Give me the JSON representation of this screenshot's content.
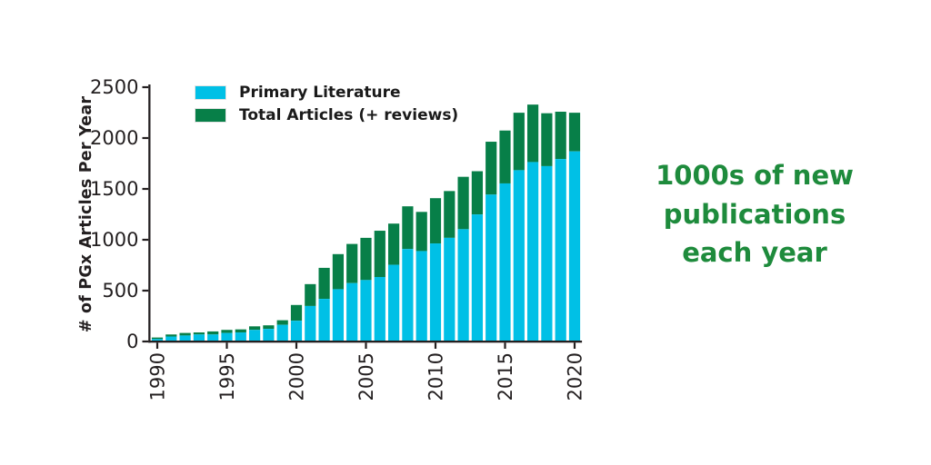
{
  "headline": {
    "text": "1000s of new publications each year",
    "color": "#1e8b3c"
  },
  "legend": {
    "items": [
      {
        "label": "Primary Literature",
        "color": "#00c0e6"
      },
      {
        "label": "Total Articles (+ reviews)",
        "color": "#077f48"
      }
    ]
  },
  "chart_data": {
    "type": "bar",
    "stacked": true,
    "title": "",
    "xlabel": "",
    "ylabel": "# of PGx Articles Per Year",
    "ylim": [
      0,
      2500
    ],
    "yticks": [
      0,
      500,
      1000,
      1500,
      2000,
      2500
    ],
    "xtick_years": [
      1990,
      1995,
      2000,
      2005,
      2010,
      2015,
      2020
    ],
    "xtick_rotation": 90,
    "grid": false,
    "legend_position": "upper left",
    "axis_color": "#231f20",
    "categories": [
      1990,
      1991,
      1992,
      1993,
      1994,
      1995,
      1996,
      1997,
      1998,
      1999,
      2000,
      2001,
      2002,
      2003,
      2004,
      2005,
      2006,
      2007,
      2008,
      2009,
      2010,
      2011,
      2012,
      2013,
      2014,
      2015,
      2016,
      2017,
      2018,
      2019,
      2020
    ],
    "series": [
      {
        "name": "Primary Literature",
        "color": "#00c0e6",
        "values": [
          15,
          40,
          50,
          60,
          60,
          75,
          80,
          105,
          115,
          155,
          195,
          340,
          410,
          505,
          565,
          595,
          625,
          745,
          900,
          880,
          955,
          1010,
          1095,
          1240,
          1435,
          1545,
          1675,
          1755,
          1715,
          1785,
          1860
        ]
      },
      {
        "name": "Total Articles (+ reviews)",
        "color": "#077f48",
        "note": "values are cumulative totals (green segment drawn from primary value up to total)",
        "values": [
          30,
          60,
          75,
          80,
          90,
          105,
          110,
          140,
          150,
          200,
          350,
          555,
          715,
          850,
          950,
          1010,
          1080,
          1150,
          1320,
          1265,
          1400,
          1470,
          1610,
          1665,
          1955,
          2065,
          2240,
          2320,
          2235,
          2250,
          2240
        ]
      }
    ]
  }
}
